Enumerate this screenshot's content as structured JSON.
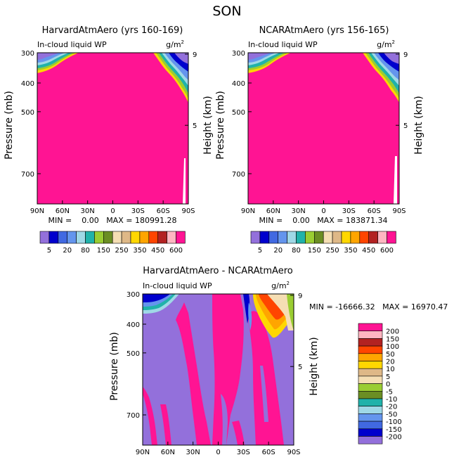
{
  "page_title": "SON",
  "chart_data": [
    {
      "type": "heatmap",
      "title": "HarvardAtmAero (yrs 160-169)",
      "subtitle_left": "In-cloud liquid WP",
      "subtitle_right": "g/m",
      "unit_sup": "2",
      "ylabel": "Pressure (mb)",
      "ylabel_right": "Height (km)",
      "x_ticks": [
        "90N",
        "60N",
        "30N",
        "0",
        "30S",
        "60S",
        "90S"
      ],
      "y_ticks": [
        "300",
        "400",
        "500",
        "700"
      ],
      "y_ticks_right": [
        "9",
        "5"
      ],
      "stats": "MIN =    0.00   MAX = 180991.28",
      "colorbar_labels": [
        "5",
        "20",
        "80",
        "150",
        "250",
        "350",
        "450",
        "600"
      ],
      "colorbar_colors": [
        "#9370db",
        "#0000cd",
        "#4169e1",
        "#6495ed",
        "#9fd8e6",
        "#20b2aa",
        "#9acd32",
        "#6b8e23",
        "#f5deb3",
        "#deb887",
        "#ffd700",
        "#ffa500",
        "#ff4500",
        "#b22222",
        "#ffb6c1",
        "#ff1493"
      ]
    },
    {
      "type": "heatmap",
      "title": "NCARAtmAero (yrs 156-165)",
      "subtitle_left": "In-cloud liquid WP",
      "subtitle_right": "g/m",
      "unit_sup": "2",
      "ylabel": "Pressure (mb)",
      "ylabel_right": "Height (km)",
      "x_ticks": [
        "90N",
        "60N",
        "30N",
        "0",
        "30S",
        "60S",
        "90S"
      ],
      "y_ticks": [
        "300",
        "400",
        "500",
        "700"
      ],
      "y_ticks_right": [
        "9",
        "5"
      ],
      "stats": "MIN =    0.00   MAX = 183871.34",
      "colorbar_labels": [
        "5",
        "20",
        "80",
        "150",
        "250",
        "350",
        "450",
        "600"
      ]
    },
    {
      "type": "heatmap",
      "title": "HarvardAtmAero - NCARAtmAero",
      "subtitle_left": "In-cloud liquid WP",
      "subtitle_right": "g/m",
      "unit_sup": "2",
      "ylabel": "Pressure (mb)",
      "ylabel_right": "Height (km)",
      "x_ticks": [
        "90N",
        "60N",
        "30N",
        "0",
        "30S",
        "60S",
        "90S"
      ],
      "y_ticks": [
        "300",
        "400",
        "500",
        "700"
      ],
      "y_ticks_right": [
        "9",
        "5"
      ],
      "stats": "MIN = -16666.32   MAX = 16970.47",
      "colorbar_labels": [
        "200",
        "150",
        "100",
        "50",
        "20",
        "10",
        "5",
        "0",
        "-5",
        "-10",
        "-20",
        "-50",
        "-100",
        "-150",
        "-200"
      ],
      "colorbar_colors": [
        "#ff1493",
        "#ffb6c1",
        "#b22222",
        "#ff4500",
        "#ffa500",
        "#ffd700",
        "#deb887",
        "#f5deb3",
        "#9acd32",
        "#6b8e23",
        "#20b2aa",
        "#9fd8e6",
        "#6495ed",
        "#4169e1",
        "#0000cd",
        "#9370db"
      ]
    }
  ]
}
